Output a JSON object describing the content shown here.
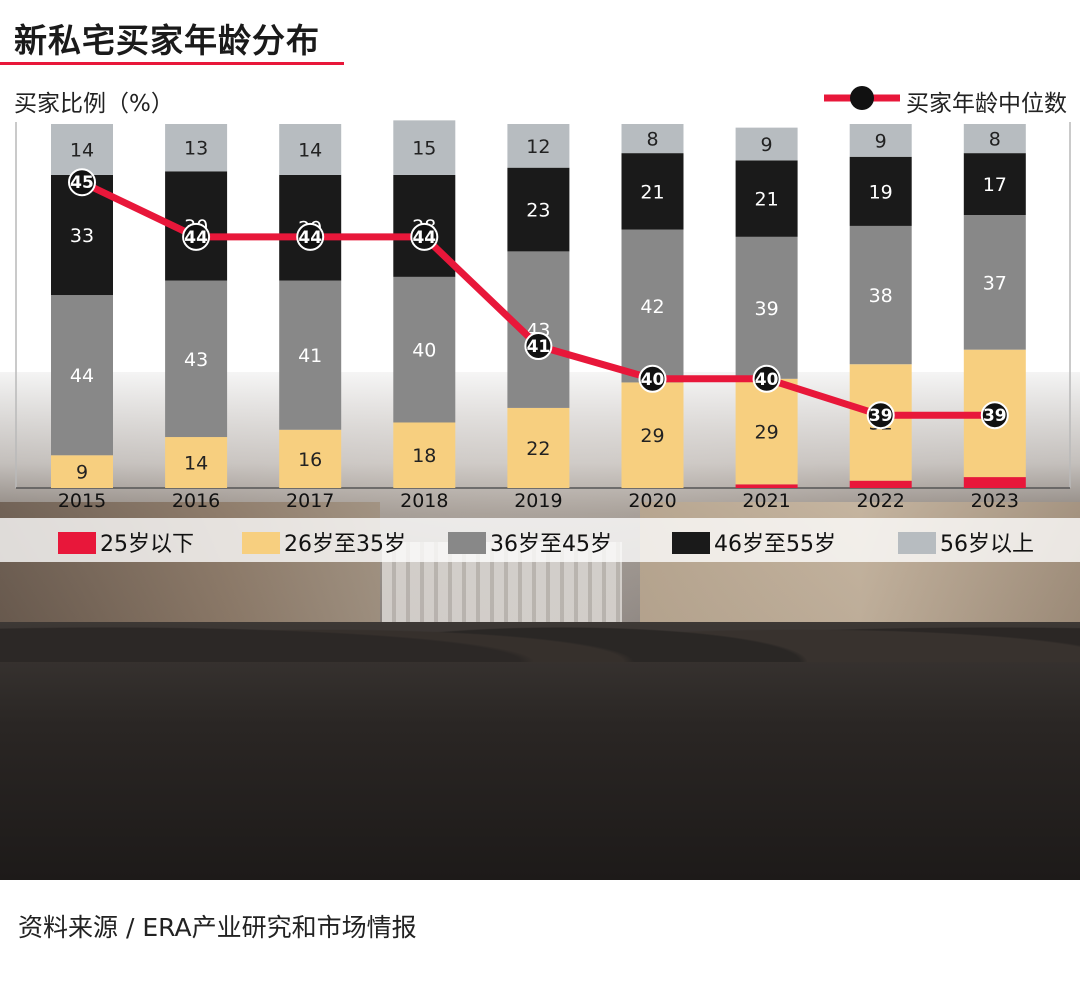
{
  "title": "新私宅买家年龄分布",
  "ylabel": "买家比例（%）",
  "median_legend": "买家年龄中位数",
  "source": "资料来源 / ERA产业研究和市场情报",
  "colors": {
    "accent": "#e8173a",
    "age_under25": "#e8173a",
    "age_26_35": "#f7cf7f",
    "age_36_45": "#888888",
    "age_46_55": "#1a1a1a",
    "age_56_plus": "#b7bcc0"
  },
  "chart_data": {
    "type": "bar",
    "stacked": true,
    "categories": [
      "2015",
      "2016",
      "2017",
      "2018",
      "2019",
      "2020",
      "2021",
      "2022",
      "2023"
    ],
    "ylim": [
      0,
      100
    ],
    "series": [
      {
        "name": "25岁以下",
        "color": "#e8173a",
        "values": [
          0,
          0,
          0,
          0,
          0,
          0,
          1,
          2,
          3
        ],
        "labels": [
          "",
          "",
          "",
          "",
          "",
          "",
          "1",
          "2",
          "3"
        ]
      },
      {
        "name": "26岁至35岁",
        "color": "#f7cf7f",
        "values": [
          9,
          14,
          16,
          18,
          22,
          29,
          29,
          32,
          35
        ],
        "labels": [
          "9",
          "14",
          "16",
          "18",
          "22",
          "29",
          "29",
          "32",
          "35"
        ]
      },
      {
        "name": "36岁至45岁",
        "color": "#888888",
        "values": [
          44,
          43,
          41,
          40,
          43,
          42,
          39,
          38,
          37
        ],
        "labels": [
          "44",
          "43",
          "41",
          "40",
          "43",
          "42",
          "39",
          "38",
          "37"
        ]
      },
      {
        "name": "46岁至55岁",
        "color": "#1a1a1a",
        "values": [
          33,
          30,
          29,
          28,
          23,
          21,
          21,
          19,
          17
        ],
        "labels": [
          "33",
          "30",
          "29",
          "28",
          "23",
          "21",
          "21",
          "19",
          "17"
        ]
      },
      {
        "name": "56岁以上",
        "color": "#b7bcc0",
        "values": [
          14,
          13,
          14,
          15,
          12,
          8,
          9,
          9,
          8
        ],
        "labels": [
          "14",
          "13",
          "14",
          "15",
          "12",
          "8",
          "9",
          "9",
          "8"
        ]
      }
    ],
    "median_line": {
      "name": "买家年龄中位数",
      "type": "line",
      "values": [
        45,
        44,
        44,
        44,
        41,
        40,
        40,
        39,
        39
      ],
      "position_in_bar_pct": [
        84,
        69,
        69,
        69,
        39,
        30,
        30,
        20,
        20
      ]
    },
    "legend_position": "bottom"
  }
}
